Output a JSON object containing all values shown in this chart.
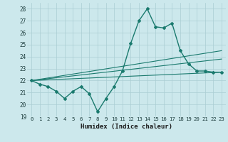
{
  "xlabel": "Humidex (Indice chaleur)",
  "ylabel": "",
  "bg_color": "#cce8ec",
  "grid_color": "#aacdd3",
  "line_color": "#1a7a6e",
  "xlim": [
    -0.5,
    23.5
  ],
  "ylim": [
    19,
    28.5
  ],
  "yticks": [
    19,
    20,
    21,
    22,
    23,
    24,
    25,
    26,
    27,
    28
  ],
  "xticks": [
    0,
    1,
    2,
    3,
    4,
    5,
    6,
    7,
    8,
    9,
    10,
    11,
    12,
    13,
    14,
    15,
    16,
    17,
    18,
    19,
    20,
    21,
    22,
    23
  ],
  "series": [
    {
      "x": [
        0,
        1,
        2,
        3,
        4,
        5,
        6,
        7,
        8,
        9,
        10,
        11,
        12,
        13,
        14,
        15,
        16,
        17,
        18,
        19,
        20,
        21,
        22,
        23
      ],
      "y": [
        22.0,
        21.7,
        21.5,
        21.1,
        20.5,
        21.1,
        21.5,
        20.9,
        19.4,
        20.5,
        21.5,
        22.8,
        25.1,
        27.0,
        28.0,
        26.5,
        26.4,
        26.8,
        24.5,
        23.4,
        22.8,
        22.8,
        22.7,
        22.7
      ],
      "marker": "D",
      "markersize": 2.0,
      "linewidth": 1.0
    },
    {
      "x": [
        0,
        23
      ],
      "y": [
        22.0,
        22.7
      ],
      "marker": null,
      "linewidth": 0.8
    },
    {
      "x": [
        0,
        23
      ],
      "y": [
        22.0,
        23.8
      ],
      "marker": null,
      "linewidth": 0.8
    },
    {
      "x": [
        0,
        23
      ],
      "y": [
        22.0,
        24.5
      ],
      "marker": null,
      "linewidth": 0.8
    }
  ]
}
